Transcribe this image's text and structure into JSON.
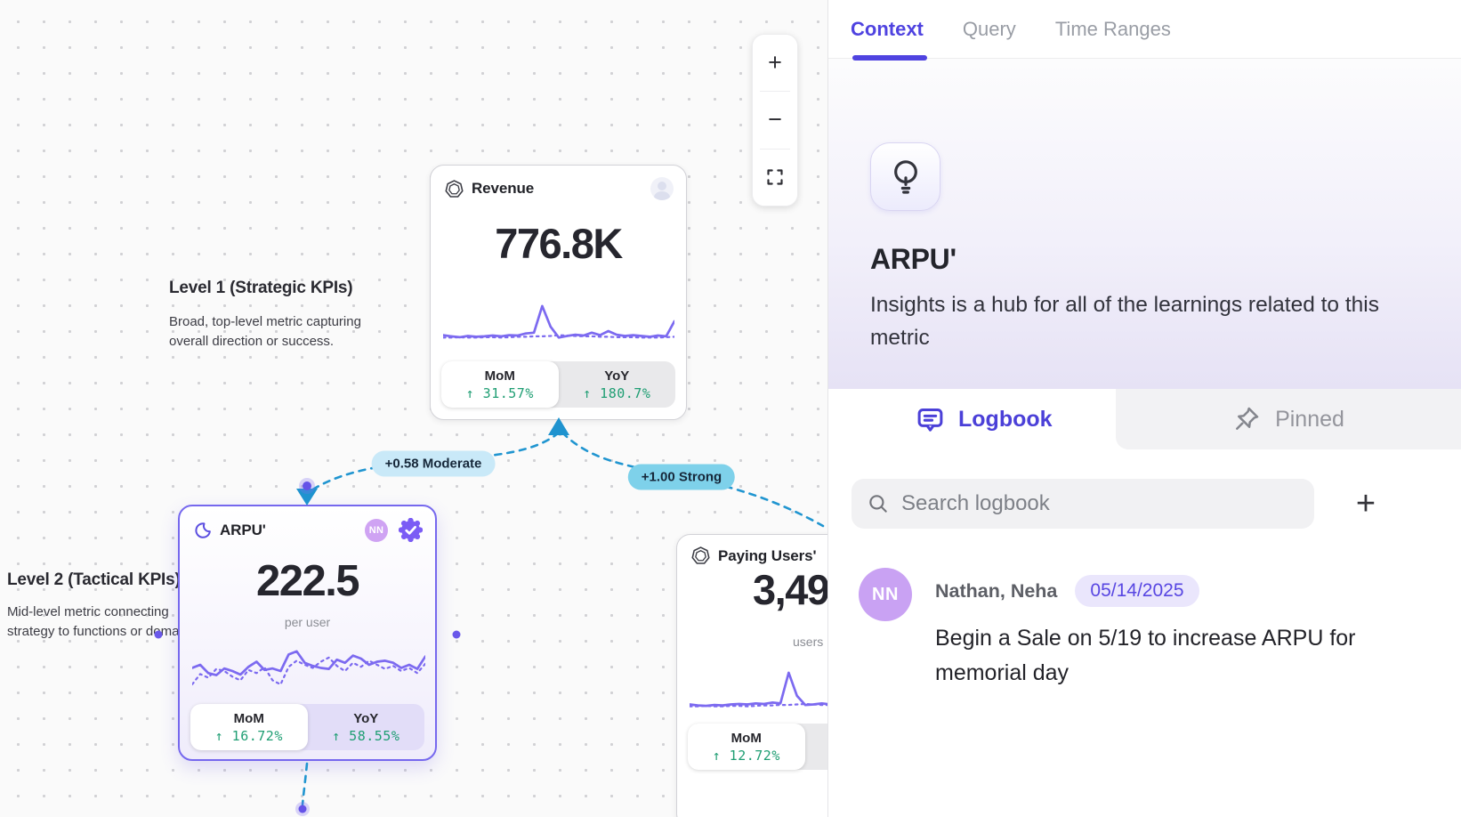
{
  "colors": {
    "accent": "#4f43e0",
    "edge_blue": "#2095d0",
    "positive_green": "#1f9e73",
    "sparkline": "#7c6af0",
    "selected_card_border": "#7668ee",
    "moderate_pill": "#c9e9f8",
    "strong_pill": "#7ed1ea",
    "avatar_purple": "#c9a2f3"
  },
  "canvas": {
    "zoom_controls": {
      "zoom_in": "+",
      "zoom_out": "−"
    },
    "levels": [
      {
        "title": "Level 1 (Strategic KPIs)",
        "lines": [
          "Broad, top-level metric capturing overall direction or success."
        ]
      },
      {
        "title": "Level 2 (Tactical KPIs)",
        "lines": [
          "Mid-level metric connecting",
          "strategy to functions or domains."
        ]
      }
    ],
    "edges": [
      {
        "label": "+0.58 Moderate"
      },
      {
        "label": "+1.00 Strong"
      }
    ],
    "cards": {
      "revenue": {
        "title": "Revenue",
        "value": "776.8K",
        "footer": {
          "mom_label": "MoM",
          "mom_value": "↑ 31.57%",
          "yoy_label": "YoY",
          "yoy_value": "↑ 180.7%"
        },
        "sparkline": {
          "solid": [
            14,
            11,
            9,
            12,
            10,
            11,
            13,
            11,
            14,
            13,
            18,
            20,
            85,
            35,
            8,
            12,
            15,
            13,
            20,
            14,
            24,
            15,
            12,
            14,
            12,
            10,
            13,
            11,
            48
          ],
          "dotted": [
            8,
            8,
            9,
            8,
            8,
            9,
            9,
            8,
            9,
            10,
            10,
            11,
            11,
            12,
            14,
            13,
            12,
            11,
            11,
            10,
            10,
            9,
            9,
            9,
            8,
            8,
            8,
            9,
            10
          ]
        }
      },
      "arpu": {
        "title": "ARPU'",
        "value": "222.5",
        "unit": "per user",
        "owner_badge": "NN",
        "footer": {
          "mom_label": "MoM",
          "mom_value": "↑ 16.72%",
          "yoy_label": "YoY",
          "yoy_value": "↑ 58.55%"
        },
        "sparkline": {
          "solid": [
            44,
            50,
            34,
            30,
            43,
            38,
            31,
            46,
            56,
            40,
            43,
            38,
            70,
            76,
            54,
            48,
            44,
            42,
            60,
            54,
            68,
            62,
            50,
            56,
            58,
            54,
            44,
            50,
            42,
            66
          ],
          "dotted": [
            12,
            32,
            25,
            42,
            38,
            27,
            20,
            40,
            34,
            45,
            20,
            12,
            46,
            58,
            50,
            44,
            56,
            64,
            48,
            38,
            54,
            46,
            58,
            50,
            42,
            48,
            38,
            44,
            34,
            52
          ]
        }
      },
      "paying_users": {
        "title": "Paying Users'",
        "value": "3,49",
        "unit": "users",
        "footer": {
          "mom_label": "MoM",
          "mom_value": "↑ 12.72%"
        },
        "sparkline": {
          "solid": [
            12,
            10,
            9,
            11,
            10,
            12,
            13,
            12,
            14,
            13,
            16,
            14,
            78,
            30,
            11,
            12,
            14,
            12,
            18,
            13,
            22,
            14,
            11,
            13,
            11,
            10,
            12,
            10,
            45
          ],
          "dotted": [
            8,
            8,
            9,
            8,
            8,
            9,
            9,
            8,
            9,
            10,
            10,
            11,
            11,
            12,
            13,
            12,
            11,
            11,
            10,
            10,
            9,
            9,
            9,
            8,
            8,
            8,
            8,
            9,
            10
          ]
        }
      }
    }
  },
  "panel": {
    "nav_tabs": [
      {
        "label": "Context"
      },
      {
        "label": "Query"
      },
      {
        "label": "Time Ranges"
      }
    ],
    "metric": {
      "title": "ARPU'",
      "description": "Insights is a hub for all of the learnings related to this metric"
    },
    "section_tabs": {
      "logbook": "Logbook",
      "pinned": "Pinned"
    },
    "search_placeholder": "Search logbook",
    "add_button": "+",
    "logbook_entries": [
      {
        "avatar_initials": "NN",
        "author": "Nathan, Neha",
        "date": "05/14/2025",
        "text": "Begin a Sale on 5/19 to increase ARPU for memorial day"
      }
    ]
  }
}
